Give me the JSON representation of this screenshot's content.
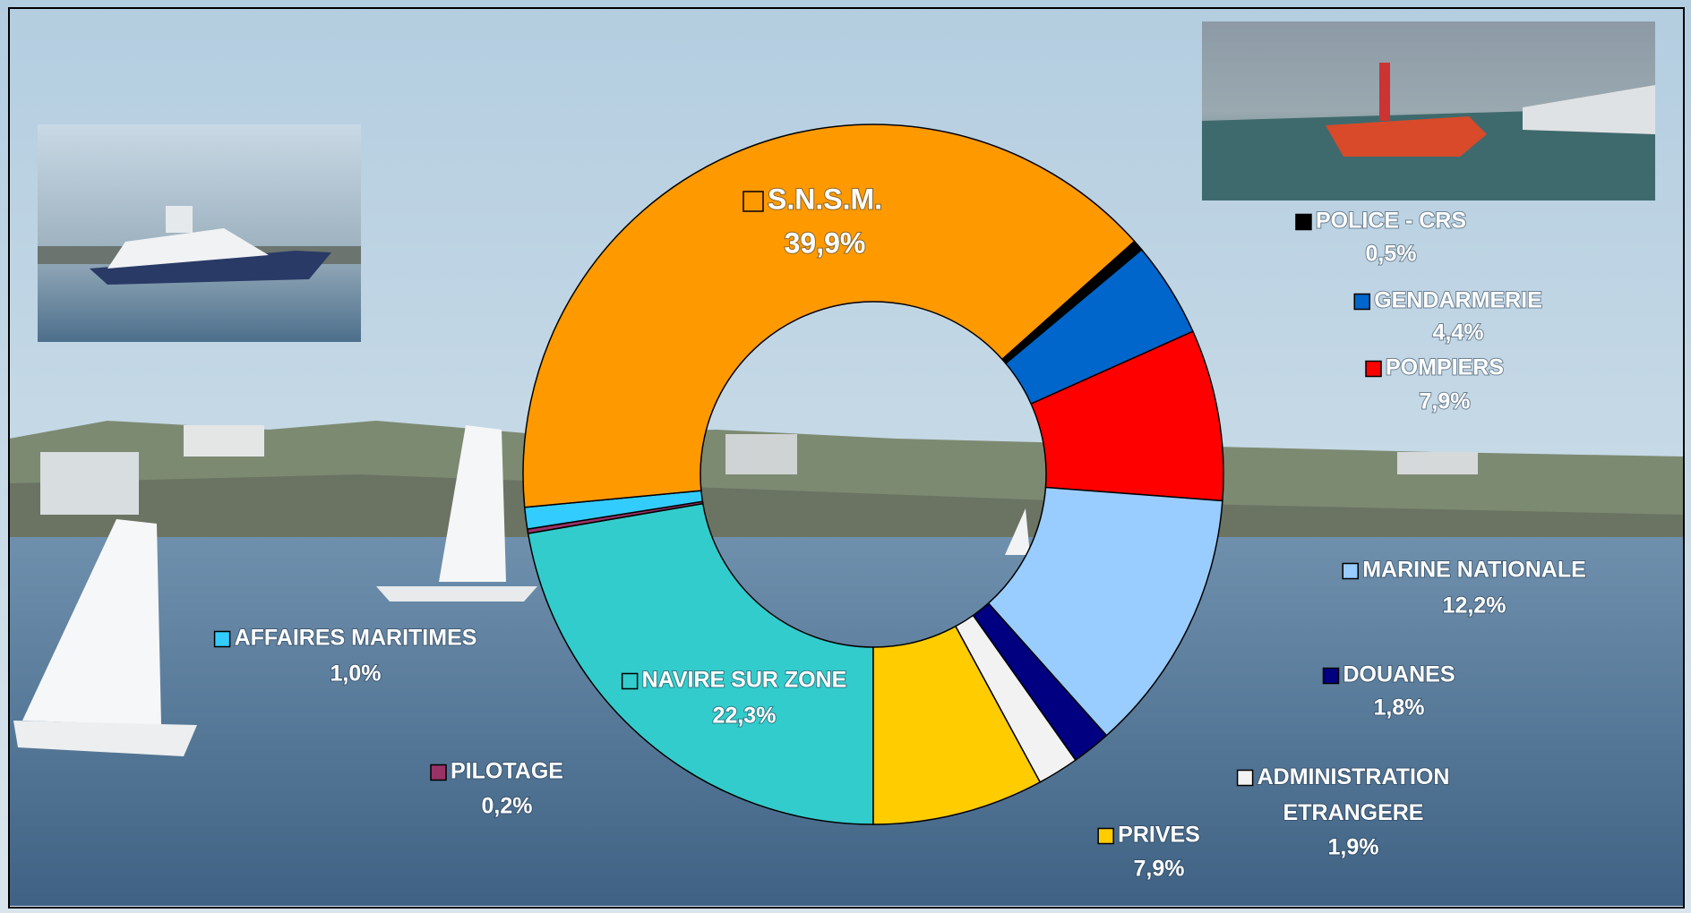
{
  "chart_data": {
    "type": "donut",
    "categories": [
      "NAVIRE SUR ZONE",
      "PILOTAGE",
      "AFFAIRES MARITIMES",
      "S.N.S.M.",
      "POLICE - CRS",
      "GENDARMERIE",
      "POMPIERS",
      "MARINE NATIONALE",
      "DOUANES",
      "ADMINISTRATION ETRANGERE",
      "PRIVES"
    ],
    "values": [
      22.3,
      0.2,
      1.0,
      39.9,
      0.5,
      4.4,
      7.9,
      12.2,
      1.8,
      1.9,
      7.9
    ],
    "value_labels": [
      "22,3%",
      "0,2%",
      "1,0%",
      "39,9%",
      "0,5%",
      "4,4%",
      "7,9%",
      "12,2%",
      "1,8%",
      "1,9%",
      "7,9%"
    ],
    "colors": [
      "#33CCCC",
      "#993366",
      "#33CCFF",
      "#FF9900",
      "#000000",
      "#0066CC",
      "#FF0000",
      "#99CCFF",
      "#000080",
      "#F2F2F2",
      "#FFCC00"
    ]
  }
}
